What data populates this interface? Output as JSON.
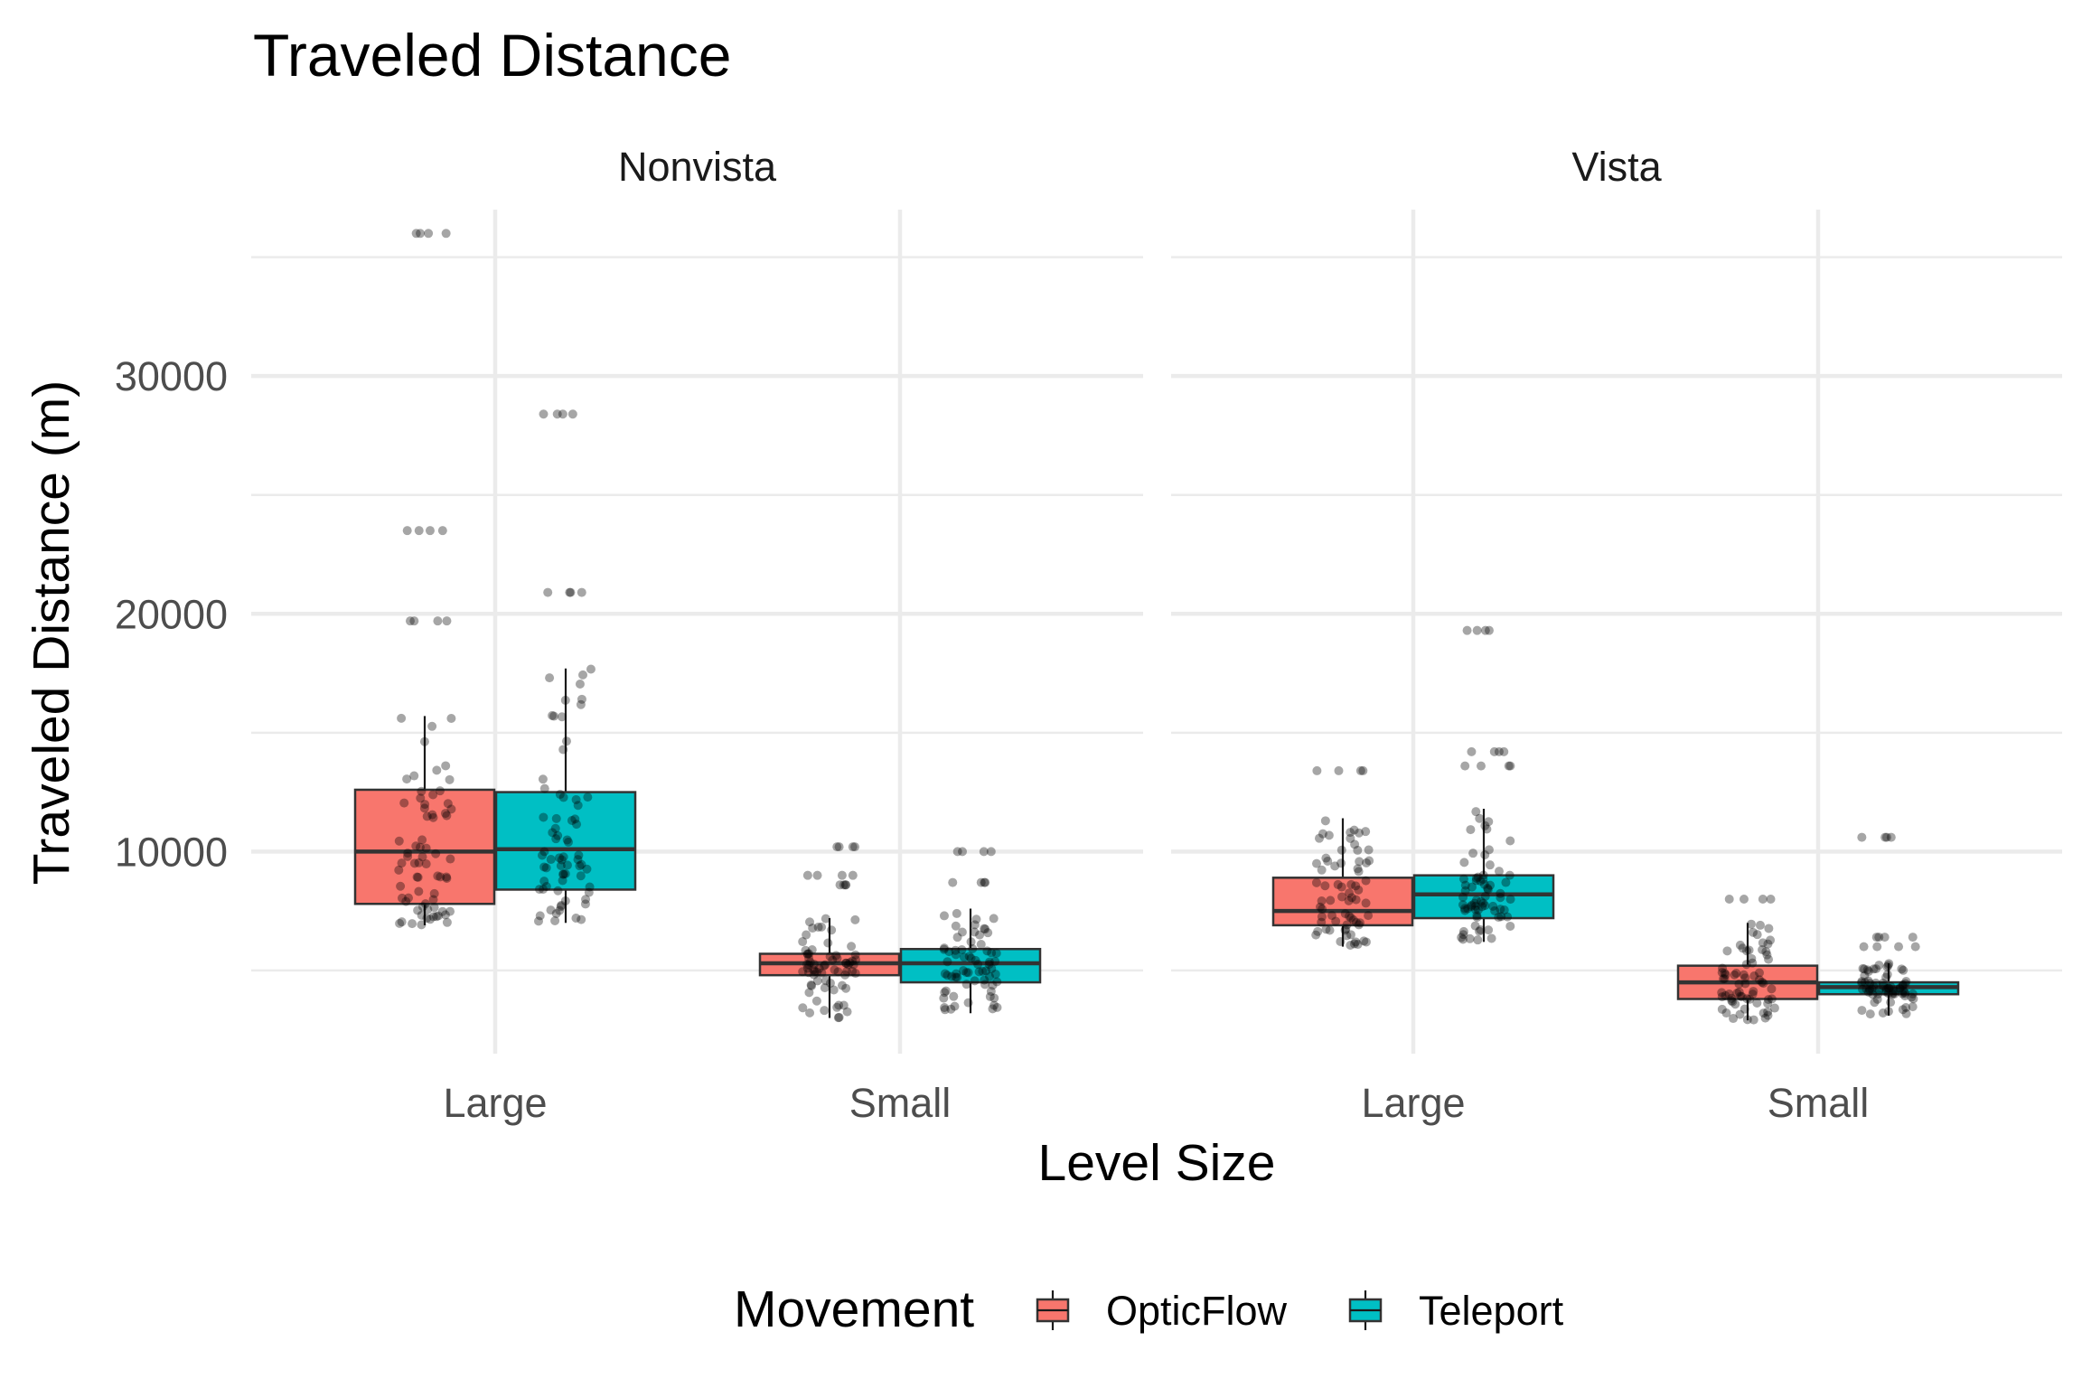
{
  "chart_data": {
    "type": "boxplot",
    "title": "Traveled Distance",
    "xlabel": "Level Size",
    "ylabel": "Traveled Distance (m)",
    "ylim": [
      1500,
      37000
    ],
    "yticks": [
      10000,
      20000,
      30000
    ],
    "y_minor": [
      5000,
      15000,
      25000,
      35000
    ],
    "grid": true,
    "categories": [
      "Large",
      "Small"
    ],
    "facets": [
      "Nonvista",
      "Vista"
    ],
    "legend": {
      "title": "Movement",
      "position": "bottom",
      "entries": [
        {
          "name": "OpticFlow",
          "color": "#F8766D"
        },
        {
          "name": "Teleport",
          "color": "#00BFC4"
        }
      ]
    },
    "boxes": [
      {
        "facet": "Nonvista",
        "category": "Large",
        "series": "OpticFlow",
        "whisker_low": 6900,
        "q1": 7800,
        "median": 10000,
        "q3": 12600,
        "whisker_high": 15700,
        "outliers": [
          19700,
          23500,
          36000
        ]
      },
      {
        "facet": "Nonvista",
        "category": "Large",
        "series": "Teleport",
        "whisker_low": 7000,
        "q1": 8400,
        "median": 10100,
        "q3": 12500,
        "whisker_high": 17700,
        "outliers": [
          20900,
          28400
        ]
      },
      {
        "facet": "Nonvista",
        "category": "Small",
        "series": "OpticFlow",
        "whisker_low": 3000,
        "q1": 4800,
        "median": 5300,
        "q3": 5700,
        "whisker_high": 7200,
        "outliers": [
          8600,
          9000,
          10200
        ]
      },
      {
        "facet": "Nonvista",
        "category": "Small",
        "series": "Teleport",
        "whisker_low": 3200,
        "q1": 4500,
        "median": 5300,
        "q3": 5900,
        "whisker_high": 7600,
        "outliers": [
          8700,
          10000
        ]
      },
      {
        "facet": "Vista",
        "category": "Large",
        "series": "OpticFlow",
        "whisker_low": 6000,
        "q1": 6900,
        "median": 7500,
        "q3": 8900,
        "whisker_high": 11400,
        "outliers": [
          13400
        ]
      },
      {
        "facet": "Vista",
        "category": "Large",
        "series": "Teleport",
        "whisker_low": 6200,
        "q1": 7200,
        "median": 8200,
        "q3": 9000,
        "whisker_high": 11800,
        "outliers": [
          13600,
          14200,
          19300
        ]
      },
      {
        "facet": "Vista",
        "category": "Small",
        "series": "OpticFlow",
        "whisker_low": 2900,
        "q1": 3800,
        "median": 4500,
        "q3": 5200,
        "whisker_high": 7000,
        "outliers": [
          8000
        ]
      },
      {
        "facet": "Vista",
        "category": "Small",
        "series": "Teleport",
        "whisker_low": 3100,
        "q1": 4000,
        "median": 4300,
        "q3": 4500,
        "whisker_high": 5300,
        "outliers": [
          6000,
          6400,
          10600
        ]
      }
    ]
  }
}
